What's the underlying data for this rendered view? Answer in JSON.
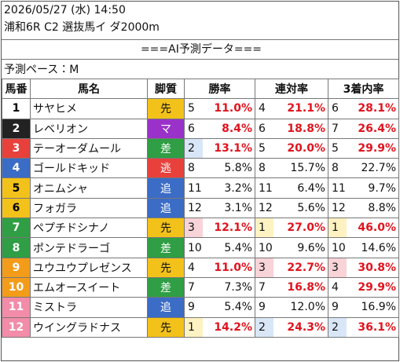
{
  "header": {
    "datetime": "2026/05/27 (水) 14:50",
    "race": "浦和6R C2 選抜馬イ ダ2000m",
    "banner": "===AI予測データ===",
    "pace": "予測ペース：M"
  },
  "table": {
    "columns": [
      "馬番",
      "馬名",
      "脚質",
      "勝率",
      "連対率",
      "3着内率"
    ],
    "style_colors": {
      "先": "#f3c21a",
      "マ": "#9a32c9",
      "差": "#2f9e44",
      "逃": "#e8413c",
      "追": "#3b6cc6"
    },
    "rank_colors": {
      "1": "#fff2c2",
      "2": "#d8e6f7",
      "3": "#f8d3d8"
    },
    "emphasis_color": "#e0141e",
    "rows": [
      {
        "color": "#ffffff",
        "text_color": "#000000",
        "cells": [
          1,
          "サヤヒメ",
          "先",
          5,
          "11.0%",
          4,
          "21.1%",
          6,
          "28.1%"
        ],
        "emphasis": [
          true,
          true,
          true
        ]
      },
      {
        "color": "#222222",
        "text_color": "#ffffff",
        "cells": [
          2,
          "レベリオン",
          "マ",
          6,
          "8.4%",
          6,
          "18.8%",
          7,
          "26.4%"
        ],
        "emphasis": [
          true,
          true,
          true
        ]
      },
      {
        "color": "#e8413c",
        "text_color": "#ffffff",
        "cells": [
          3,
          "テーオーダムール",
          "差",
          2,
          "13.1%",
          5,
          "20.0%",
          5,
          "29.9%"
        ],
        "emphasis": [
          true,
          true,
          true
        ]
      },
      {
        "color": "#3b6cc6",
        "text_color": "#ffffff",
        "cells": [
          4,
          "ゴールドキッド",
          "逃",
          8,
          "5.8%",
          8,
          "15.7%",
          8,
          "22.7%"
        ],
        "emphasis": [
          false,
          false,
          false
        ]
      },
      {
        "color": "#f3c21a",
        "text_color": "#000000",
        "cells": [
          5,
          "オニムシャ",
          "追",
          11,
          "3.2%",
          11,
          "6.4%",
          11,
          "9.7%"
        ],
        "emphasis": [
          false,
          false,
          false
        ]
      },
      {
        "color": "#f3c21a",
        "text_color": "#000000",
        "cells": [
          6,
          "フォガラ",
          "追",
          12,
          "3.1%",
          12,
          "5.6%",
          12,
          "8.8%"
        ],
        "emphasis": [
          false,
          false,
          false
        ]
      },
      {
        "color": "#2f9e44",
        "text_color": "#ffffff",
        "cells": [
          7,
          "ペプチドシナノ",
          "先",
          3,
          "12.1%",
          1,
          "27.0%",
          1,
          "46.0%"
        ],
        "emphasis": [
          true,
          true,
          true
        ]
      },
      {
        "color": "#2f9e44",
        "text_color": "#ffffff",
        "cells": [
          8,
          "ポンテドラーゴ",
          "差",
          10,
          "5.4%",
          10,
          "9.6%",
          10,
          "14.6%"
        ],
        "emphasis": [
          false,
          false,
          false
        ]
      },
      {
        "color": "#f39c1a",
        "text_color": "#ffffff",
        "cells": [
          9,
          "ユウユウプレゼンス",
          "先",
          4,
          "11.0%",
          3,
          "22.7%",
          3,
          "30.8%"
        ],
        "emphasis": [
          true,
          true,
          true
        ]
      },
      {
        "color": "#f39c1a",
        "text_color": "#ffffff",
        "cells": [
          10,
          "エムオースイート",
          "差",
          7,
          "7.3%",
          7,
          "16.8%",
          4,
          "29.9%"
        ],
        "emphasis": [
          false,
          true,
          true
        ]
      },
      {
        "color": "#f28ca8",
        "text_color": "#ffffff",
        "cells": [
          11,
          "ミストラ",
          "追",
          9,
          "5.4%",
          9,
          "12.0%",
          9,
          "16.9%"
        ],
        "emphasis": [
          false,
          false,
          false
        ]
      },
      {
        "color": "#f28ca8",
        "text_color": "#ffffff",
        "cells": [
          12,
          "ウイングラドナス",
          "先",
          1,
          "14.2%",
          2,
          "24.3%",
          2,
          "36.1%"
        ],
        "emphasis": [
          true,
          true,
          true
        ]
      }
    ]
  }
}
